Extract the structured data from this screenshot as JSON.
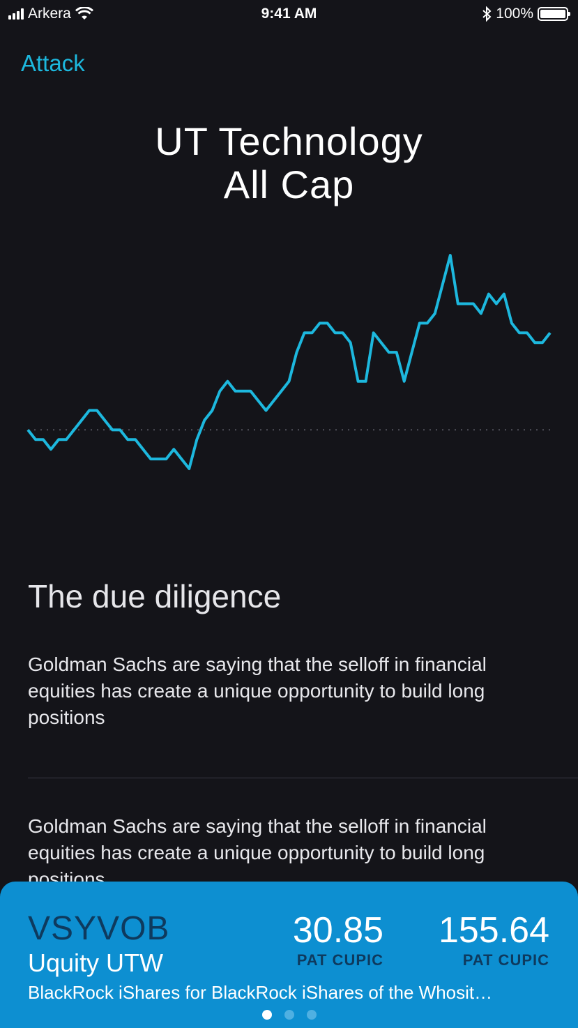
{
  "status_bar": {
    "carrier": "Arkera",
    "time": "9:41 AM",
    "battery": "100%"
  },
  "nav": {
    "back_label": "Attack"
  },
  "header": {
    "title_line1": "UT Technology",
    "title_line2": "All Cap"
  },
  "chart_data": {
    "type": "line",
    "title": "",
    "xlabel": "",
    "ylabel": "",
    "baseline": 0,
    "grid": false,
    "legend": "none",
    "color": "#1db8de",
    "series": [
      {
        "values": [
          0,
          -1,
          -1,
          -2,
          -1,
          -1,
          0,
          1,
          2,
          2,
          1,
          0,
          0,
          -1,
          -1,
          -2,
          -3,
          -3,
          -3,
          -2,
          -3,
          -4,
          -1,
          1,
          2,
          4,
          5,
          4,
          4,
          4,
          3,
          2,
          3,
          4,
          5,
          8,
          10,
          10,
          11,
          11,
          10,
          10,
          9,
          5,
          5,
          10,
          9,
          8,
          8,
          5,
          8,
          11,
          11,
          12,
          15,
          18,
          13,
          13,
          13,
          12,
          14,
          13,
          14,
          11,
          10,
          10,
          9,
          9,
          10
        ]
      }
    ]
  },
  "article": {
    "section_title": "The due diligence",
    "paragraphs": [
      "Goldman Sachs are saying that the selloff in financial equities has create a unique opportunity to build long positions",
      "Goldman Sachs are saying that the selloff in financial equities has create a unique opportunity to build long positions"
    ]
  },
  "card": {
    "ticker": "VSYVOB",
    "fund_name": "Uquity UTW",
    "description": "BlackRock iShares for BlackRock iShares of the Whosit…",
    "metrics": [
      {
        "value": "30.85",
        "label": "PAT CUPIC"
      },
      {
        "value": "155.64",
        "label": "PAT CUPIC"
      }
    ],
    "page_count": 3,
    "active_page": 0
  },
  "colors": {
    "background": "#141419",
    "accent": "#1db8de",
    "card": "#0d8fd1",
    "card_dark_text": "#0e3a5e"
  }
}
